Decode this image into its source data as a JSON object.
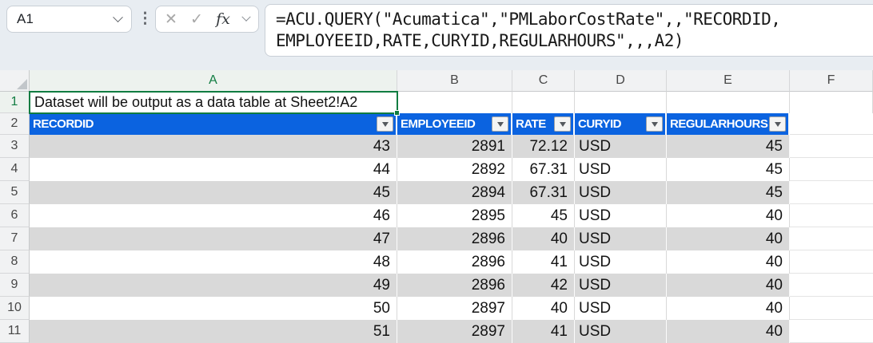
{
  "formula_bar": {
    "name_box": "A1",
    "formula_lines": [
      "=ACU.QUERY(\"Acumatica\",\"PMLaborCostRate\",,\"RECORDID,",
      "EMPLOYEEID,RATE,CURYID,REGULARHOURS\",,,A2)"
    ],
    "icons": {
      "cancel": "✕",
      "enter": "✓",
      "function": "fx",
      "drag_dots": "⋮"
    }
  },
  "sheet": {
    "column_letters": [
      "A",
      "B",
      "C",
      "D",
      "E",
      "F"
    ],
    "row_numbers": [
      "1",
      "2",
      "3",
      "4",
      "5",
      "6",
      "7",
      "8",
      "9",
      "10",
      "11"
    ],
    "a1_text": "Dataset will be output as a data table at Sheet2!A2",
    "table": {
      "headers": [
        "RECORDID",
        "EMPLOYEEID",
        "RATE",
        "CURYID",
        "REGULARHOURS"
      ],
      "rows": [
        [
          "43",
          "2891",
          "72.12",
          "USD",
          "45"
        ],
        [
          "44",
          "2892",
          "67.31",
          "USD",
          "45"
        ],
        [
          "45",
          "2894",
          "67.31",
          "USD",
          "45"
        ],
        [
          "46",
          "2895",
          "45",
          "USD",
          "40"
        ],
        [
          "47",
          "2896",
          "40",
          "USD",
          "40"
        ],
        [
          "48",
          "2896",
          "41",
          "USD",
          "40"
        ],
        [
          "49",
          "2896",
          "42",
          "USD",
          "40"
        ],
        [
          "50",
          "2897",
          "40",
          "USD",
          "40"
        ],
        [
          "51",
          "2897",
          "41",
          "USD",
          "40"
        ]
      ]
    }
  },
  "colors": {
    "table_header_blue": "#0B63E0",
    "band_gray": "#D9D9D9",
    "selection_green": "#107C41",
    "topbar_background": "#E8EDF2"
  }
}
